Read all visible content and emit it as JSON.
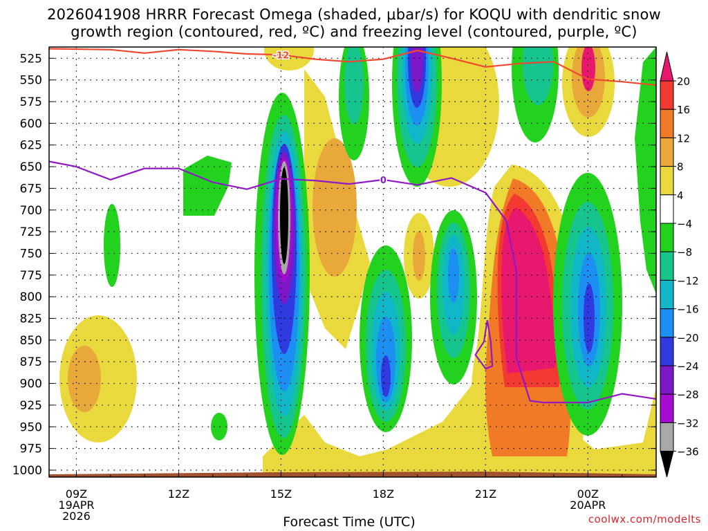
{
  "title_line1": "2026041908 HRRR Forecast Omega (shaded, μbar/s) for KOQU with dendritic snow",
  "title_line2": "growth region (contoured, red, ºC) and freezing level (contoured, purple, ºC)",
  "credit": "coolwx.com/modelts",
  "chart_data": {
    "type": "time-height contour (omega)",
    "xlabel": "Forecast Time (UTC)",
    "x_ticks": [
      {
        "label": "09Z",
        "sub1": "19APR",
        "sub2": "2026"
      },
      {
        "label": "12Z"
      },
      {
        "label": "15Z"
      },
      {
        "label": "18Z"
      },
      {
        "label": "21Z"
      },
      {
        "label": "00Z",
        "sub1": "20APR"
      }
    ],
    "x_hours": [
      9,
      12,
      15,
      18,
      21,
      24
    ],
    "x_range_hours": [
      8.2,
      26.0
    ],
    "y_ticks": [
      525,
      550,
      575,
      600,
      625,
      650,
      675,
      700,
      725,
      750,
      775,
      800,
      825,
      850,
      875,
      900,
      925,
      950,
      975,
      1000
    ],
    "y_range_hpa": [
      512,
      1008
    ],
    "colorbar": {
      "labels": [
        "20",
        "16",
        "12",
        "8",
        "4",
        "−4",
        "−8",
        "−12",
        "−16",
        "−20",
        "−24",
        "−28",
        "−32",
        "−36"
      ],
      "colors": [
        "#e8186f",
        "#f23a32",
        "#f07a25",
        "#e8a83a",
        "#e9d93d",
        "#ffffff",
        "#22d21e",
        "#16c48e",
        "#10b7c9",
        "#1c8ff2",
        "#2f3ae0",
        "#7c18c8",
        "#a50bd0",
        "#a8a8a8",
        "#000000"
      ]
    },
    "contours": [
      {
        "name": "dendritic -12C",
        "color": "#f0472f",
        "label": "-12",
        "points": [
          [
            8.2,
            514
          ],
          [
            10,
            515
          ],
          [
            11,
            519
          ],
          [
            12,
            515
          ],
          [
            13,
            517
          ],
          [
            14,
            520
          ],
          [
            15,
            521
          ],
          [
            16,
            526
          ],
          [
            17,
            529
          ],
          [
            18,
            526
          ],
          [
            19,
            516
          ],
          [
            20,
            525
          ],
          [
            21,
            535
          ],
          [
            22,
            531
          ],
          [
            23,
            529
          ],
          [
            24,
            549
          ],
          [
            25,
            552
          ],
          [
            26,
            556
          ]
        ]
      },
      {
        "name": "freezing level 0C",
        "color": "#9017c6",
        "label": "0",
        "points": [
          [
            8.2,
            644
          ],
          [
            9,
            650
          ],
          [
            10,
            665
          ],
          [
            11,
            652
          ],
          [
            12,
            652
          ],
          [
            13,
            668
          ],
          [
            14,
            676
          ],
          [
            15,
            664
          ],
          [
            16,
            666
          ],
          [
            17,
            670
          ],
          [
            18,
            665
          ],
          [
            19,
            671
          ],
          [
            20,
            663
          ],
          [
            21,
            680
          ],
          [
            21.6,
            712
          ],
          [
            21.9,
            770
          ],
          [
            21.9,
            870
          ],
          [
            22.3,
            920
          ],
          [
            22.7,
            922
          ],
          [
            23.2,
            922
          ],
          [
            24,
            922
          ],
          [
            25,
            912
          ],
          [
            26,
            918
          ]
        ]
      },
      {
        "name": "freezing level closed cell",
        "color": "#9017c6",
        "points": [
          [
            21.05,
            827
          ],
          [
            21.15,
            852
          ],
          [
            21.2,
            880
          ],
          [
            21.0,
            883
          ],
          [
            20.7,
            867
          ],
          [
            20.95,
            852
          ],
          [
            21.05,
            827
          ]
        ]
      }
    ]
  }
}
